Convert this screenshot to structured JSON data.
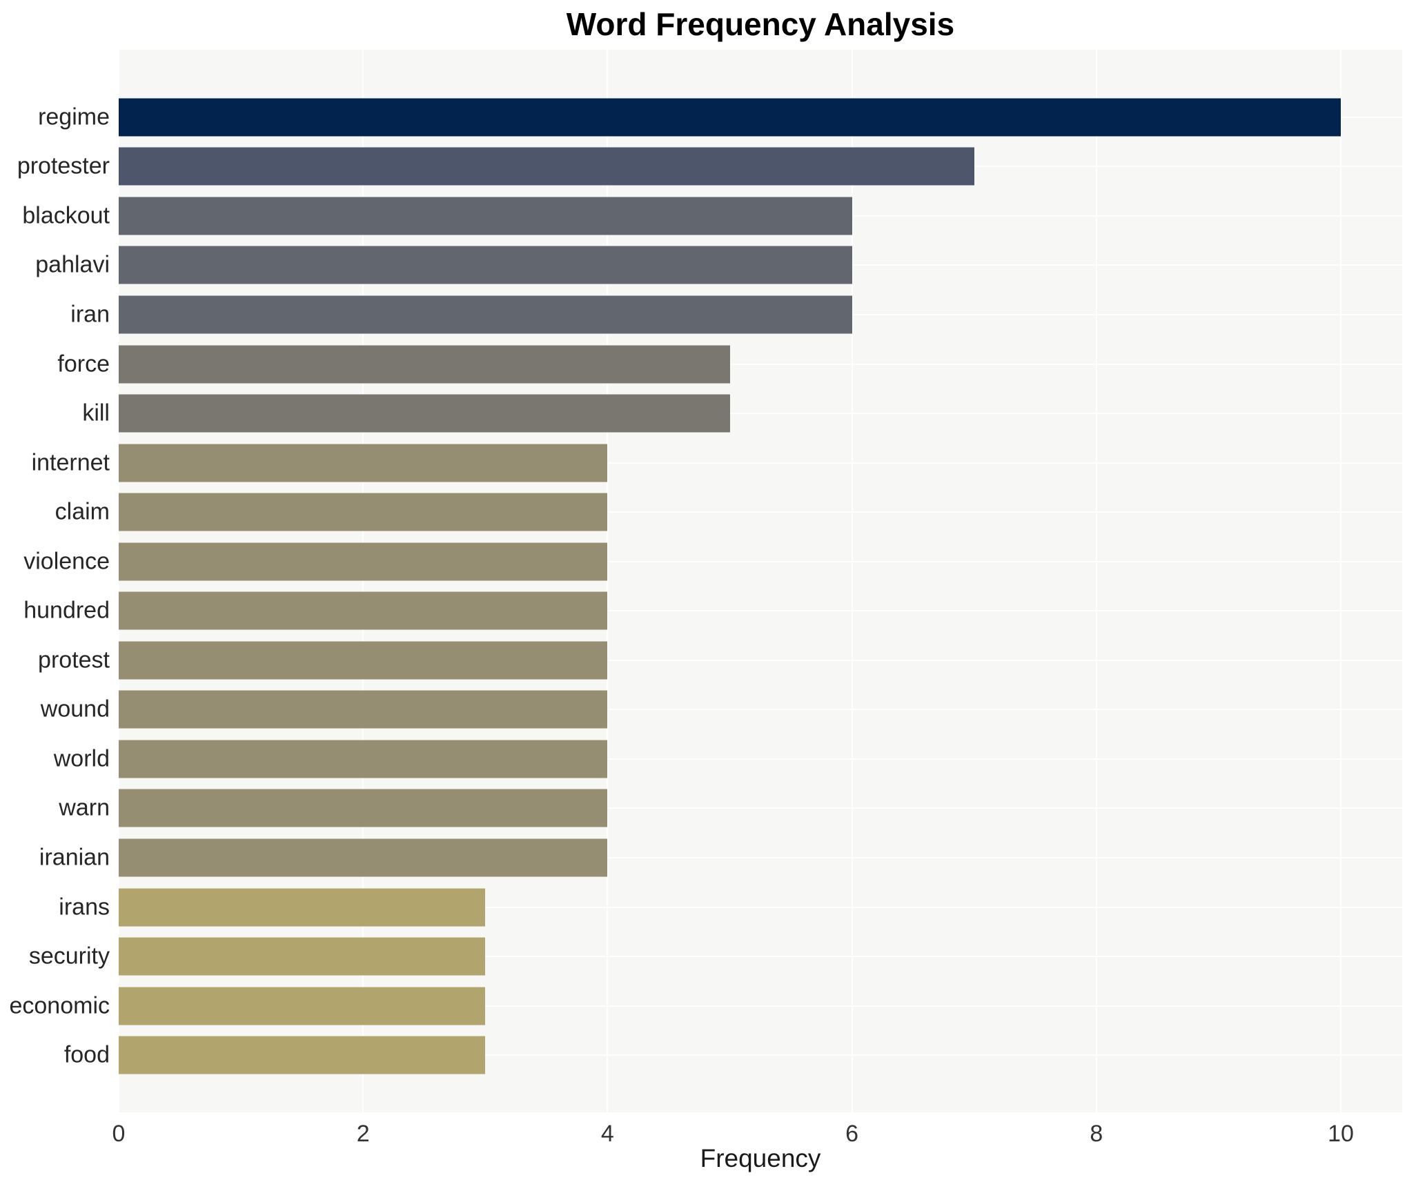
{
  "title": "Word Frequency Analysis",
  "chart_data": {
    "type": "bar",
    "orientation": "horizontal",
    "title": "Word Frequency Analysis",
    "xlabel": "Frequency",
    "ylabel": "",
    "xlim": [
      0,
      10.5
    ],
    "xticks": [
      0,
      2,
      4,
      6,
      8,
      10
    ],
    "grid": true,
    "legend": "none",
    "plot_background": "#f7f7f6",
    "grid_color": "#ffffff",
    "label_color": "#262626",
    "categories": [
      "regime",
      "protester",
      "blackout",
      "pahlavi",
      "iran",
      "force",
      "kill",
      "internet",
      "claim",
      "violence",
      "hundred",
      "protest",
      "wound",
      "world",
      "warn",
      "iranian",
      "irans",
      "security",
      "economic",
      "food"
    ],
    "values": [
      10,
      7,
      6,
      6,
      6,
      5,
      5,
      4,
      4,
      4,
      4,
      4,
      4,
      4,
      4,
      4,
      3,
      3,
      3,
      3
    ],
    "bar_colors": [
      "#02234e",
      "#4d566b",
      "#62666f",
      "#62666f",
      "#62666f",
      "#7a7770",
      "#7a7770",
      "#958e73",
      "#958e73",
      "#958e73",
      "#958e73",
      "#958e73",
      "#958e73",
      "#958e73",
      "#958e73",
      "#958e73",
      "#b1a46c",
      "#b1a46c",
      "#b1a46c",
      "#b1a46c"
    ]
  }
}
